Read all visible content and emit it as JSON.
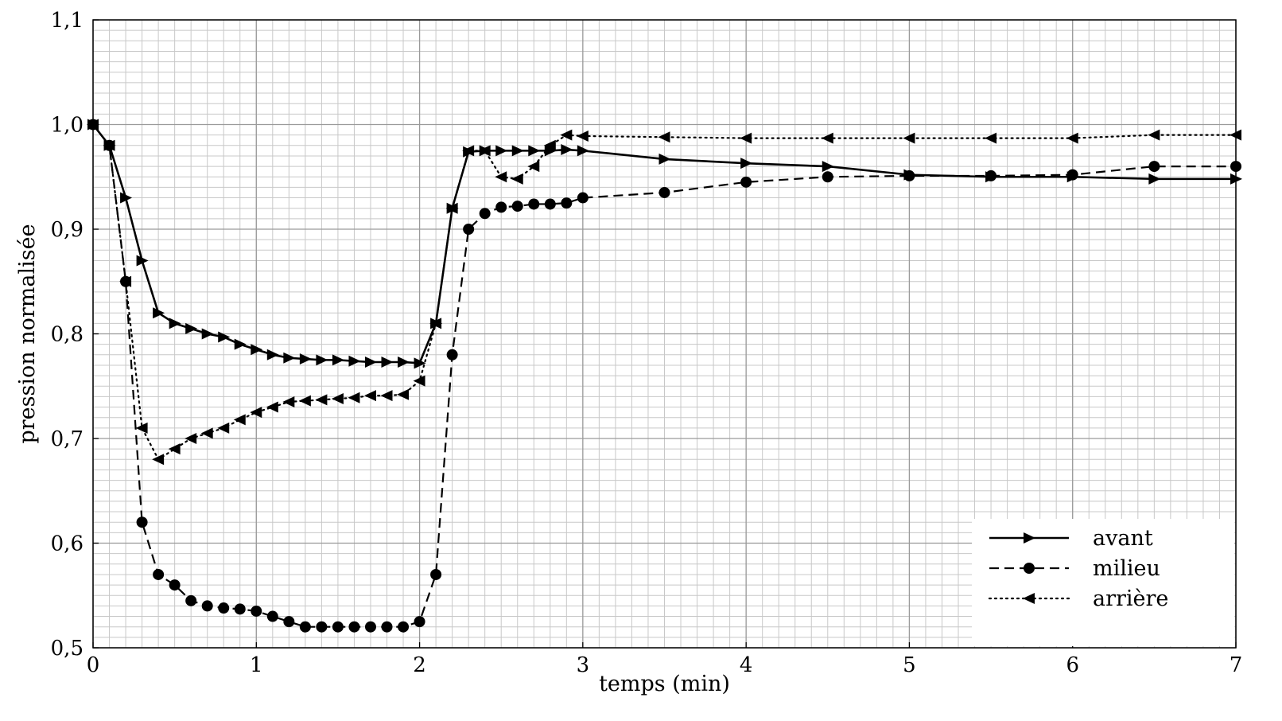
{
  "chart_data": {
    "type": "line",
    "title": "",
    "xlabel": "temps (min)",
    "ylabel": "pression normalisée",
    "xlim": [
      0,
      7
    ],
    "ylim": [
      0.5,
      1.1
    ],
    "x_ticks": [
      0,
      1,
      2,
      3,
      4,
      5,
      6,
      7
    ],
    "x_tick_labels": [
      "0",
      "1",
      "2",
      "3",
      "4",
      "5",
      "6",
      "7"
    ],
    "y_ticks": [
      0.5,
      0.6,
      0.7,
      0.8,
      0.9,
      1.0,
      1.1
    ],
    "y_tick_labels": [
      "0,5",
      "0,6",
      "0,7",
      "0,8",
      "0,9",
      "1,0",
      "1,1"
    ],
    "grid": true,
    "legend_position": "bottom-right",
    "series": [
      {
        "name": "avant",
        "line_style": "solid",
        "marker": "triangle-right",
        "points": [
          [
            0,
            1.0
          ],
          [
            0.1,
            0.98
          ],
          [
            0.2,
            0.93
          ],
          [
            0.3,
            0.87
          ],
          [
            0.4,
            0.82
          ],
          [
            0.5,
            0.81
          ],
          [
            0.6,
            0.805
          ],
          [
            0.7,
            0.8
          ],
          [
            0.8,
            0.797
          ],
          [
            0.9,
            0.79
          ],
          [
            1.0,
            0.785
          ],
          [
            1.1,
            0.78
          ],
          [
            1.2,
            0.777
          ],
          [
            1.3,
            0.776
          ],
          [
            1.4,
            0.775
          ],
          [
            1.5,
            0.775
          ],
          [
            1.6,
            0.774
          ],
          [
            1.7,
            0.773
          ],
          [
            1.8,
            0.773
          ],
          [
            1.9,
            0.773
          ],
          [
            2.0,
            0.772
          ],
          [
            2.1,
            0.81
          ],
          [
            2.2,
            0.92
          ],
          [
            2.3,
            0.974
          ],
          [
            2.4,
            0.975
          ],
          [
            2.5,
            0.975
          ],
          [
            2.6,
            0.975
          ],
          [
            2.7,
            0.975
          ],
          [
            2.8,
            0.975
          ],
          [
            2.9,
            0.976
          ],
          [
            3.0,
            0.975
          ],
          [
            3.5,
            0.967
          ],
          [
            4.0,
            0.963
          ],
          [
            4.5,
            0.96
          ],
          [
            5.0,
            0.952
          ],
          [
            5.5,
            0.95
          ],
          [
            6.0,
            0.95
          ],
          [
            6.5,
            0.948
          ],
          [
            7.0,
            0.948
          ]
        ]
      },
      {
        "name": "milieu",
        "line_style": "dashed",
        "marker": "circle",
        "points": [
          [
            0,
            1.0
          ],
          [
            0.1,
            0.98
          ],
          [
            0.2,
            0.85
          ],
          [
            0.3,
            0.62
          ],
          [
            0.4,
            0.57
          ],
          [
            0.5,
            0.56
          ],
          [
            0.6,
            0.545
          ],
          [
            0.7,
            0.54
          ],
          [
            0.8,
            0.538
          ],
          [
            0.9,
            0.537
          ],
          [
            1.0,
            0.535
          ],
          [
            1.1,
            0.53
          ],
          [
            1.2,
            0.525
          ],
          [
            1.3,
            0.52
          ],
          [
            1.4,
            0.52
          ],
          [
            1.5,
            0.52
          ],
          [
            1.6,
            0.52
          ],
          [
            1.7,
            0.52
          ],
          [
            1.8,
            0.52
          ],
          [
            1.9,
            0.52
          ],
          [
            2.0,
            0.525
          ],
          [
            2.1,
            0.57
          ],
          [
            2.2,
            0.78
          ],
          [
            2.3,
            0.9
          ],
          [
            2.4,
            0.915
          ],
          [
            2.5,
            0.921
          ],
          [
            2.6,
            0.922
          ],
          [
            2.7,
            0.924
          ],
          [
            2.8,
            0.924
          ],
          [
            2.9,
            0.925
          ],
          [
            3.0,
            0.93
          ],
          [
            3.5,
            0.935
          ],
          [
            4.0,
            0.945
          ],
          [
            4.5,
            0.95
          ],
          [
            5.0,
            0.951
          ],
          [
            5.5,
            0.951
          ],
          [
            6.0,
            0.952
          ],
          [
            6.5,
            0.96
          ],
          [
            7.0,
            0.96
          ]
        ]
      },
      {
        "name": "arrière",
        "line_style": "dotted",
        "marker": "triangle-left",
        "points": [
          [
            0,
            1.0
          ],
          [
            0.1,
            0.98
          ],
          [
            0.2,
            0.85
          ],
          [
            0.3,
            0.71
          ],
          [
            0.4,
            0.68
          ],
          [
            0.5,
            0.69
          ],
          [
            0.6,
            0.7
          ],
          [
            0.7,
            0.705
          ],
          [
            0.8,
            0.71
          ],
          [
            0.9,
            0.718
          ],
          [
            1.0,
            0.725
          ],
          [
            1.1,
            0.73
          ],
          [
            1.2,
            0.735
          ],
          [
            1.3,
            0.736
          ],
          [
            1.4,
            0.737
          ],
          [
            1.5,
            0.738
          ],
          [
            1.6,
            0.739
          ],
          [
            1.7,
            0.741
          ],
          [
            1.8,
            0.741
          ],
          [
            1.9,
            0.742
          ],
          [
            2.0,
            0.755
          ],
          [
            2.1,
            0.81
          ],
          [
            2.2,
            0.92
          ],
          [
            2.3,
            0.975
          ],
          [
            2.4,
            0.975
          ],
          [
            2.5,
            0.95
          ],
          [
            2.6,
            0.948
          ],
          [
            2.7,
            0.96
          ],
          [
            2.8,
            0.98
          ],
          [
            2.9,
            0.99
          ],
          [
            3.0,
            0.989
          ],
          [
            3.5,
            0.988
          ],
          [
            4.0,
            0.987
          ],
          [
            4.5,
            0.987
          ],
          [
            5.0,
            0.987
          ],
          [
            5.5,
            0.987
          ],
          [
            6.0,
            0.987
          ],
          [
            6.5,
            0.99
          ],
          [
            7.0,
            0.99
          ]
        ]
      }
    ]
  }
}
